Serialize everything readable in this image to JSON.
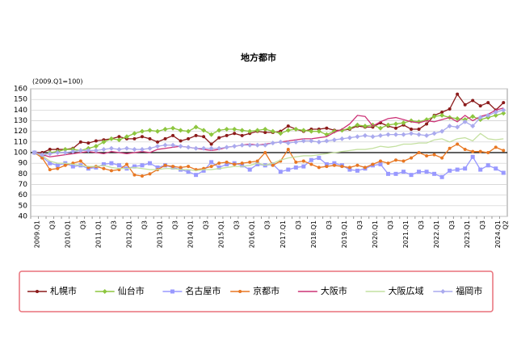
{
  "chart_data": {
    "type": "line",
    "title": "地方都市",
    "subtitle": "(2009.Q1=100)",
    "categories": [
      "2009.Q1",
      null,
      "Q3",
      null,
      "2010.Q1",
      null,
      "Q3",
      null,
      "2011.Q1",
      null,
      "Q3",
      null,
      "2012.Q1",
      null,
      "Q3",
      null,
      "2013.Q1",
      null,
      "Q3",
      null,
      "2014.Q1",
      null,
      "Q3",
      null,
      "2015.Q1",
      null,
      "Q3",
      null,
      "2016.Q1",
      null,
      "Q3",
      null,
      "2017.Q1",
      null,
      "Q3",
      null,
      "2018.Q1",
      null,
      "Q3",
      null,
      "2019.Q1",
      null,
      "Q3",
      null,
      "2020.Q1",
      null,
      "Q3",
      null,
      "2021.Q1",
      null,
      "Q3",
      null,
      "2022.Q1",
      null,
      "Q3",
      null,
      "2023.Q1",
      null,
      "Q3",
      null,
      "2024.Q1",
      "Q2"
    ],
    "ylim": [
      40,
      160
    ],
    "yticks": [
      40,
      50,
      60,
      70,
      80,
      90,
      100,
      110,
      120,
      130,
      140,
      150,
      160
    ],
    "grid": true,
    "series": [
      {
        "name": "札幌市",
        "color": "#8b1a1a",
        "marker": "dot",
        "values": [
          100,
          100,
          103,
          103,
          103,
          104,
          110,
          109,
          111,
          112,
          113,
          115,
          113,
          113,
          115,
          113,
          110,
          113,
          116,
          111,
          113,
          116,
          115,
          108,
          114,
          116,
          118,
          116,
          118,
          120,
          119,
          119,
          120,
          125,
          122,
          120,
          122,
          122,
          123,
          121,
          121,
          122,
          125,
          124,
          124,
          128,
          125,
          123,
          126,
          122,
          122,
          127,
          135,
          138,
          141,
          155,
          145,
          149,
          144,
          147,
          140,
          147
        ]
      },
      {
        "name": "仙台市",
        "color": "#8dc63f",
        "marker": "diamond",
        "values": [
          100,
          97,
          100,
          101,
          103,
          103,
          102,
          104,
          106,
          110,
          113,
          112,
          115,
          118,
          120,
          121,
          120,
          122,
          123,
          121,
          120,
          124,
          121,
          117,
          121,
          122,
          122,
          121,
          120,
          121,
          122,
          120,
          118,
          121,
          122,
          121,
          120,
          120,
          117,
          120,
          121,
          123,
          126,
          125,
          126,
          123,
          126,
          127,
          128,
          130,
          129,
          131,
          134,
          135,
          133,
          132,
          131,
          134,
          131,
          133,
          135,
          137
        ]
      },
      {
        "name": "名古屋市",
        "color": "#9999ff",
        "marker": "square",
        "values": [
          100,
          96,
          90,
          88,
          90,
          87,
          88,
          85,
          86,
          89,
          90,
          88,
          85,
          87,
          88,
          90,
          86,
          88,
          86,
          84,
          82,
          79,
          83,
          91,
          86,
          89,
          90,
          88,
          84,
          89,
          88,
          89,
          82,
          84,
          86,
          87,
          93,
          95,
          89,
          90,
          88,
          84,
          83,
          85,
          88,
          89,
          80,
          80,
          82,
          79,
          82,
          82,
          80,
          77,
          83,
          84,
          85,
          96,
          84,
          88,
          85,
          81
        ]
      },
      {
        "name": "京都市",
        "color": "#e87722",
        "marker": "dot",
        "values": [
          100,
          95,
          84,
          85,
          88,
          90,
          92,
          86,
          87,
          85,
          83,
          84,
          89,
          79,
          78,
          80,
          84,
          88,
          87,
          86,
          87,
          84,
          85,
          87,
          90,
          91,
          89,
          90,
          91,
          92,
          100,
          88,
          92,
          103,
          91,
          92,
          89,
          86,
          87,
          88,
          87,
          86,
          88,
          86,
          89,
          92,
          90,
          93,
          92,
          95,
          100,
          97,
          98,
          95,
          104,
          108,
          103,
          101,
          101,
          100,
          105,
          102
        ]
      },
      {
        "name": "大阪市",
        "color": "#cc3377",
        "marker": "none",
        "values": [
          100,
          98,
          96,
          97,
          98,
          99,
          100,
          101,
          100,
          99,
          101,
          100,
          99,
          100,
          101,
          100,
          103,
          104,
          105,
          106,
          105,
          104,
          103,
          102,
          103,
          105,
          106,
          107,
          108,
          107,
          108,
          109,
          110,
          111,
          112,
          113,
          113,
          114,
          115,
          119,
          122,
          127,
          135,
          134,
          125,
          129,
          132,
          133,
          131,
          129,
          128,
          130,
          129,
          131,
          133,
          129,
          135,
          130,
          134,
          136,
          140,
          142
        ]
      },
      {
        "name": "大阪広域",
        "color": "#c4e0a0",
        "marker": "none",
        "values": [
          100,
          97,
          92,
          90,
          90,
          89,
          88,
          87,
          87,
          88,
          86,
          85,
          85,
          86,
          85,
          84,
          84,
          85,
          85,
          84,
          84,
          83,
          84,
          84,
          85,
          86,
          87,
          87,
          88,
          90,
          88,
          90,
          93,
          95,
          96,
          97,
          97,
          98,
          99,
          100,
          101,
          102,
          103,
          103,
          104,
          106,
          105,
          106,
          108,
          108,
          109,
          109,
          112,
          113,
          110,
          113,
          114,
          111,
          118,
          113,
          112,
          113
        ]
      },
      {
        "name": "福岡市",
        "color": "#aaaaee",
        "marker": "diamond",
        "values": [
          100,
          98,
          99,
          100,
          100,
          101,
          102,
          102,
          102,
          103,
          104,
          103,
          104,
          103,
          103,
          104,
          106,
          107,
          107,
          106,
          105,
          104,
          104,
          104,
          104,
          105,
          106,
          107,
          107,
          107,
          107,
          109,
          110,
          109,
          110,
          111,
          111,
          110,
          111,
          112,
          113,
          114,
          115,
          116,
          115,
          116,
          117,
          117,
          117,
          118,
          117,
          116,
          118,
          120,
          125,
          124,
          129,
          125,
          133,
          135,
          138,
          140
        ]
      }
    ]
  }
}
